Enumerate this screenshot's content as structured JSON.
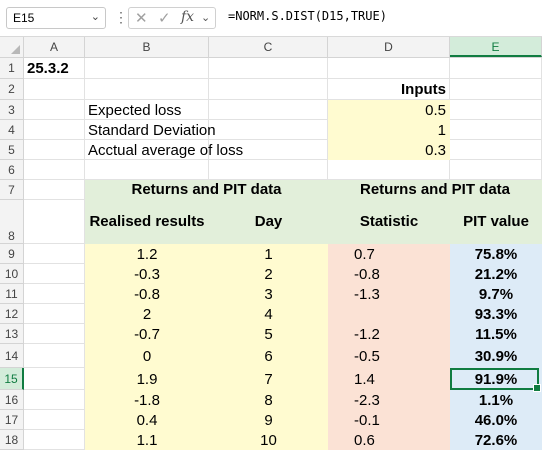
{
  "formula_bar": {
    "name_box": "E15",
    "formula": "=NORM.S.DIST(D15,TRUE)"
  },
  "column_headers": [
    "A",
    "B",
    "C",
    "D",
    "E"
  ],
  "selected_column": "E",
  "row_numbers": [
    "1",
    "2",
    "3",
    "4",
    "5",
    "6",
    "7",
    "8",
    "9",
    "10",
    "11",
    "12",
    "13",
    "14",
    "15",
    "16",
    "17",
    "18"
  ],
  "selected_row": "15",
  "title": "25.3.2",
  "inputs": {
    "header": "Inputs",
    "items": [
      {
        "label": "Expected loss",
        "value": "0.5"
      },
      {
        "label": "Standard Deviation",
        "value": "1"
      },
      {
        "label": "Acctual average of loss",
        "value": "0.3"
      }
    ]
  },
  "table": {
    "group_left": "Returns and PIT data",
    "group_right": "Returns and PIT data",
    "col_realised": "Realised results",
    "col_day": "Day",
    "col_statistic": "Statistic",
    "col_pit": "PIT value",
    "rows": [
      {
        "realised": "1.2",
        "day": "1",
        "statistic": "0.7",
        "pit": "75.8%"
      },
      {
        "realised": "-0.3",
        "day": "2",
        "statistic": "-0.8",
        "pit": "21.2%"
      },
      {
        "realised": "-0.8",
        "day": "3",
        "statistic": "-1.3",
        "pit": "9.7%"
      },
      {
        "realised": "2",
        "day": "4",
        "statistic": "",
        "pit": "93.3%"
      },
      {
        "realised": "-0.7",
        "day": "5",
        "statistic": "-1.2",
        "pit": "11.5%"
      },
      {
        "realised": "0",
        "day": "6",
        "statistic": "-0.5",
        "pit": "30.9%"
      },
      {
        "realised": "1.9",
        "day": "7",
        "statistic": "1.4",
        "pit": "91.9%"
      },
      {
        "realised": "-1.8",
        "day": "8",
        "statistic": "-2.3",
        "pit": "1.1%"
      },
      {
        "realised": "0.4",
        "day": "9",
        "statistic": "-0.1",
        "pit": "46.0%"
      },
      {
        "realised": "1.1",
        "day": "10",
        "statistic": "0.6",
        "pit": "72.6%"
      }
    ]
  },
  "colors": {
    "input_fill": "#fffbd0",
    "header_fill": "#e2efda",
    "realised_fill": "#fffbd0",
    "statistic_fill": "#fbe2d5",
    "pit_fill": "#ddebf7",
    "selection": "#107c41"
  }
}
